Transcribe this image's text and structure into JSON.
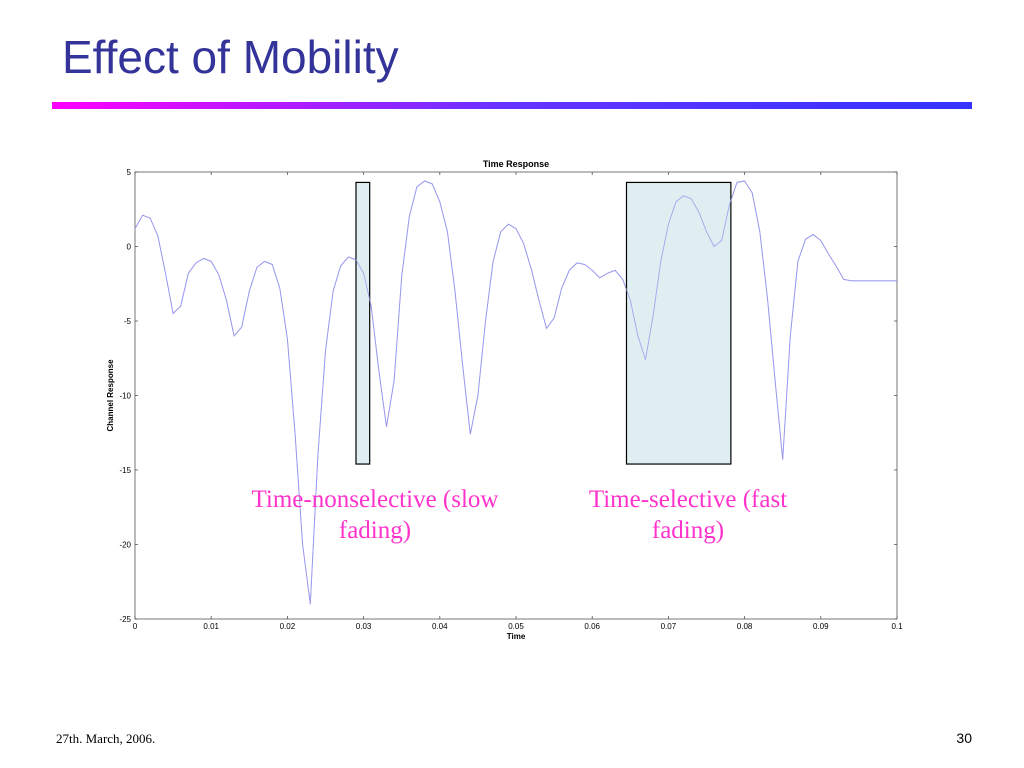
{
  "slide": {
    "title": "Effect of Mobility",
    "footer_date": "27th. March, 2006.",
    "page_number": "30",
    "title_rule_colors": [
      "#ff00ff",
      "#3333ff"
    ]
  },
  "annotations": [
    {
      "text": "Time-nonselective (slow fading)",
      "color": "#ff33cc",
      "region_x": [
        0.029,
        0.0308
      ]
    },
    {
      "text": "Time-selective (fast fading)",
      "color": "#ff33cc",
      "region_x": [
        0.0645,
        0.0782
      ]
    }
  ],
  "chart_data": {
    "type": "line",
    "title": "Time Response",
    "xlabel": "Time",
    "ylabel": "Channel Response",
    "xlim": [
      0,
      0.1
    ],
    "ylim": [
      -25,
      5
    ],
    "x_ticks": [
      "0",
      "0.01",
      "0.02",
      "0.03",
      "0.04",
      "0.05",
      "0.06",
      "0.07",
      "0.08",
      "0.09",
      "0.1"
    ],
    "y_ticks": [
      "5",
      "0",
      "-5",
      "-10",
      "-15",
      "-20",
      "-25"
    ],
    "grid": false,
    "line_color": "#9999ee",
    "highlight_fill": "#d9ecee",
    "highlight_ylim": [
      -14.6,
      4.3
    ],
    "series": [
      {
        "x": [
          0,
          0.001,
          0.002,
          0.003,
          0.004,
          0.005,
          0.006,
          0.007,
          0.008,
          0.009,
          0.01,
          0.011,
          0.012,
          0.013,
          0.014,
          0.015,
          0.016,
          0.017,
          0.018,
          0.019,
          0.02,
          0.021,
          0.022,
          0.023,
          0.024,
          0.025,
          0.026,
          0.027,
          0.028,
          0.029,
          0.03,
          0.031,
          0.032,
          0.033,
          0.034,
          0.035,
          0.036,
          0.037,
          0.038,
          0.039,
          0.04,
          0.041,
          0.042,
          0.043,
          0.044,
          0.045,
          0.046,
          0.047,
          0.048,
          0.049,
          0.05,
          0.051,
          0.052,
          0.053,
          0.054,
          0.055,
          0.056,
          0.057,
          0.058,
          0.059,
          0.06,
          0.061,
          0.062,
          0.063,
          0.064,
          0.065,
          0.066,
          0.067,
          0.068,
          0.069,
          0.07,
          0.071,
          0.072,
          0.073,
          0.074,
          0.075,
          0.076,
          0.077,
          0.078,
          0.079,
          0.08,
          0.081,
          0.082,
          0.083,
          0.084,
          0.085,
          0.086,
          0.087,
          0.088,
          0.089,
          0.09,
          0.091,
          0.092,
          0.093,
          0.094,
          0.095,
          0.096,
          0.097,
          0.098,
          0.099,
          0.1
        ],
        "y": [
          1.2,
          2.1,
          1.9,
          0.7,
          -1.8,
          -4.5,
          -4.0,
          -1.8,
          -1.1,
          -0.8,
          -1.0,
          -1.9,
          -3.6,
          -6.0,
          -5.4,
          -3.0,
          -1.4,
          -1.0,
          -1.2,
          -2.8,
          -6.2,
          -12.5,
          -20.0,
          -24.0,
          -14.0,
          -7.0,
          -3.0,
          -1.3,
          -0.7,
          -0.9,
          -1.8,
          -4.0,
          -8.3,
          -12.1,
          -9.0,
          -2.0,
          2.0,
          4.0,
          4.4,
          4.2,
          3.0,
          1.0,
          -3.0,
          -8.0,
          -12.6,
          -10.0,
          -5.0,
          -1.0,
          1.0,
          1.5,
          1.2,
          0.2,
          -1.5,
          -3.6,
          -5.5,
          -4.8,
          -2.8,
          -1.6,
          -1.1,
          -1.2,
          -1.6,
          -2.1,
          -1.8,
          -1.6,
          -2.2,
          -3.6,
          -6.0,
          -7.6,
          -4.6,
          -1.0,
          1.5,
          3.0,
          3.4,
          3.2,
          2.3,
          1.0,
          0.0,
          0.4,
          2.8,
          4.3,
          4.4,
          3.6,
          1.0,
          -3.5,
          -9.0,
          -14.3,
          -6.0,
          -1.0,
          0.5,
          0.8,
          0.4,
          -0.5,
          -1.3,
          -2.2,
          -2.3,
          -2.3,
          -2.3,
          -2.3,
          -2.3,
          -2.3,
          -2.3
        ]
      }
    ]
  }
}
